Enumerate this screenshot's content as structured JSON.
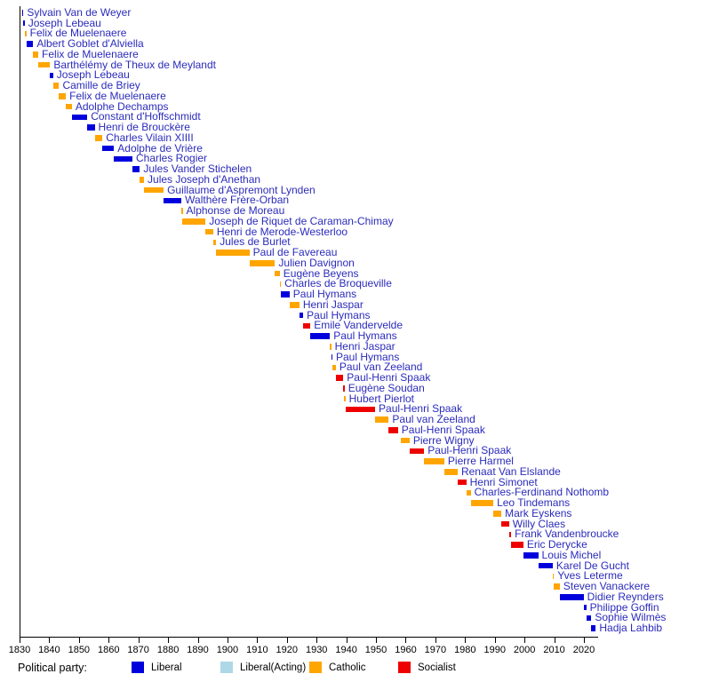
{
  "colors": {
    "liberal": "#0000dd",
    "liberal_acting": "#add8e6",
    "catholic": "#ffa500",
    "socialist": "#ee0000",
    "name_text": "#2b2bbb",
    "axis_text": "#000000"
  },
  "legend": {
    "title": "Political party:",
    "entries": [
      {
        "label": "Liberal",
        "color": "#0000dd"
      },
      {
        "label": "Liberal(Acting)",
        "color": "#add8e6"
      },
      {
        "label": "Catholic",
        "color": "#ffa500"
      },
      {
        "label": "Socialist",
        "color": "#ee0000"
      }
    ]
  },
  "chart_data": {
    "type": "timeline",
    "title": "",
    "xlabel": "",
    "ylabel": "",
    "x_axis": {
      "min": 1830,
      "max": 2024.5,
      "tick_labels": [
        "1830",
        "1840",
        "1850",
        "1860",
        "1870",
        "1880",
        "1890",
        "1900",
        "1910",
        "1920",
        "1930",
        "1940",
        "1950",
        "1960",
        "1970",
        "1980",
        "1990",
        "2000",
        "2010",
        "2020"
      ],
      "tick_years": [
        1830,
        1840,
        1850,
        1860,
        1870,
        1880,
        1890,
        1900,
        1910,
        1920,
        1930,
        1940,
        1950,
        1960,
        1970,
        1980,
        1990,
        2000,
        2010,
        2020
      ]
    },
    "legend_position": "bottom",
    "grid": false,
    "ministers": [
      {
        "name": "Sylvain Van de Weyer",
        "party": "Liberal",
        "start": 1830.9,
        "end": 1831.3
      },
      {
        "name": "Joseph Lebeau",
        "party": "Liberal",
        "start": 1831.3,
        "end": 1831.7
      },
      {
        "name": "Felix de Muelenaere",
        "party": "Catholic",
        "start": 1831.7,
        "end": 1832.3
      },
      {
        "name": "Albert Goblet d'Alviella",
        "party": "Liberal",
        "start": 1832.3,
        "end": 1834.6
      },
      {
        "name": "Felix de Muelenaere",
        "party": "Catholic",
        "start": 1834.6,
        "end": 1836.3
      },
      {
        "name": "Barthélémy de Theux de Meylandt",
        "party": "Catholic",
        "start": 1836.3,
        "end": 1840.3
      },
      {
        "name": "Joseph Lebeau",
        "party": "Liberal",
        "start": 1840.3,
        "end": 1841.3
      },
      {
        "name": "Camille de Briey",
        "party": "Catholic",
        "start": 1841.3,
        "end": 1843.3
      },
      {
        "name": "Felix de Muelenaere",
        "party": "Catholic",
        "start": 1843.3,
        "end": 1845.6
      },
      {
        "name": "Adolphe Dechamps",
        "party": "Catholic",
        "start": 1845.6,
        "end": 1847.6
      },
      {
        "name": "Constant d'Hoffschmidt",
        "party": "Liberal",
        "start": 1847.6,
        "end": 1852.8
      },
      {
        "name": "Henri de Brouckère",
        "party": "Liberal",
        "start": 1852.8,
        "end": 1855.3
      },
      {
        "name": "Charles Vilain XIIII",
        "party": "Catholic",
        "start": 1855.3,
        "end": 1857.9
      },
      {
        "name": "Adolphe de Vrière",
        "party": "Liberal",
        "start": 1857.9,
        "end": 1861.8
      },
      {
        "name": "Charles Rogier",
        "party": "Liberal",
        "start": 1861.8,
        "end": 1868.0
      },
      {
        "name": "Jules Vander Stichelen",
        "party": "Liberal",
        "start": 1868.0,
        "end": 1870.5
      },
      {
        "name": "Jules Joseph d'Anethan",
        "party": "Catholic",
        "start": 1870.5,
        "end": 1871.9
      },
      {
        "name": "Guillaume d'Aspremont Lynden",
        "party": "Catholic",
        "start": 1871.9,
        "end": 1878.5
      },
      {
        "name": "Walthère Frère-Orban",
        "party": "Liberal",
        "start": 1878.5,
        "end": 1884.5
      },
      {
        "name": "Alphonse de Moreau",
        "party": "Catholic",
        "start": 1884.5,
        "end": 1884.9
      },
      {
        "name": "Joseph de Riquet de Caraman-Chimay",
        "party": "Catholic",
        "start": 1884.9,
        "end": 1892.6
      },
      {
        "name": "Henri de Merode-Westerloo",
        "party": "Catholic",
        "start": 1892.6,
        "end": 1895.2
      },
      {
        "name": "Jules de Burlet",
        "party": "Catholic",
        "start": 1895.2,
        "end": 1896.2
      },
      {
        "name": "Paul de Favereau",
        "party": "Catholic",
        "start": 1896.2,
        "end": 1907.4
      },
      {
        "name": "Julien Davignon",
        "party": "Catholic",
        "start": 1907.4,
        "end": 1916.0
      },
      {
        "name": "Eugène Beyens",
        "party": "Catholic",
        "start": 1916.0,
        "end": 1917.6
      },
      {
        "name": "Charles de Broqueville",
        "party": "Catholic",
        "start": 1917.6,
        "end": 1918.0
      },
      {
        "name": "Paul Hymans",
        "party": "Liberal",
        "start": 1918.0,
        "end": 1920.9
      },
      {
        "name": "Henri Jaspar",
        "party": "Catholic",
        "start": 1920.9,
        "end": 1924.2
      },
      {
        "name": "Paul Hymans",
        "party": "Liberal",
        "start": 1924.2,
        "end": 1925.5
      },
      {
        "name": "Emile Vandervelde",
        "party": "Socialist",
        "start": 1925.5,
        "end": 1927.9
      },
      {
        "name": "Paul Hymans",
        "party": "Liberal",
        "start": 1927.9,
        "end": 1934.5
      },
      {
        "name": "Henri Jaspar",
        "party": "Catholic",
        "start": 1934.5,
        "end": 1934.9
      },
      {
        "name": "Paul Hymans",
        "party": "Liberal",
        "start": 1934.9,
        "end": 1935.3
      },
      {
        "name": "Paul van Zeeland",
        "party": "Catholic",
        "start": 1935.3,
        "end": 1936.5
      },
      {
        "name": "Paul-Henri Spaak",
        "party": "Socialist",
        "start": 1936.5,
        "end": 1939.0
      },
      {
        "name": "Eugène Soudan",
        "party": "Socialist",
        "start": 1939.0,
        "end": 1939.2
      },
      {
        "name": "Hubert Pierlot",
        "party": "Catholic",
        "start": 1939.2,
        "end": 1939.7
      },
      {
        "name": "Paul-Henri Spaak",
        "party": "Socialist",
        "start": 1939.7,
        "end": 1949.7
      },
      {
        "name": "Paul van Zeeland",
        "party": "Catholic",
        "start": 1949.7,
        "end": 1954.3
      },
      {
        "name": "Paul-Henri Spaak",
        "party": "Socialist",
        "start": 1954.3,
        "end": 1957.4
      },
      {
        "name": "Pierre Wigny",
        "party": "Catholic",
        "start": 1958.4,
        "end": 1961.3
      },
      {
        "name": "Paul-Henri Spaak",
        "party": "Socialist",
        "start": 1961.3,
        "end": 1966.2
      },
      {
        "name": "Pierre Harmel",
        "party": "Catholic",
        "start": 1966.2,
        "end": 1973.0
      },
      {
        "name": "Renaat Van Elslande",
        "party": "Catholic",
        "start": 1973.0,
        "end": 1977.5
      },
      {
        "name": "Henri Simonet",
        "party": "Socialist",
        "start": 1977.5,
        "end": 1980.4
      },
      {
        "name": "Charles-Ferdinand Nothomb",
        "party": "Catholic",
        "start": 1980.4,
        "end": 1981.9
      },
      {
        "name": "Leo Tindemans",
        "party": "Catholic",
        "start": 1981.9,
        "end": 1989.5
      },
      {
        "name": "Mark Eyskens",
        "party": "Catholic",
        "start": 1989.5,
        "end": 1992.2
      },
      {
        "name": "Willy Claes",
        "party": "Socialist",
        "start": 1992.2,
        "end": 1994.8
      },
      {
        "name": "Frank Vandenbroucke",
        "party": "Socialist",
        "start": 1994.8,
        "end": 1995.5
      },
      {
        "name": "Eric Derycke",
        "party": "Socialist",
        "start": 1995.5,
        "end": 1999.6
      },
      {
        "name": "Louis Michel",
        "party": "Liberal",
        "start": 1999.6,
        "end": 2004.6
      },
      {
        "name": "Karel De Gucht",
        "party": "Liberal",
        "start": 2004.6,
        "end": 2009.5
      },
      {
        "name": "Yves Leterme",
        "party": "Catholic",
        "start": 2009.5,
        "end": 2009.9
      },
      {
        "name": "Steven Vanackere",
        "party": "Catholic",
        "start": 2009.9,
        "end": 2011.9
      },
      {
        "name": "Didier Reynders",
        "party": "Liberal",
        "start": 2011.9,
        "end": 2019.9
      },
      {
        "name": "Philippe Goffin",
        "party": "Liberal",
        "start": 2019.9,
        "end": 2020.8
      },
      {
        "name": "Sophie Wilmès",
        "party": "Liberal",
        "start": 2020.8,
        "end": 2022.5
      },
      {
        "name": "Hadja Lahbib",
        "party": "Liberal",
        "start": 2022.5,
        "end": 2024.0
      }
    ]
  }
}
